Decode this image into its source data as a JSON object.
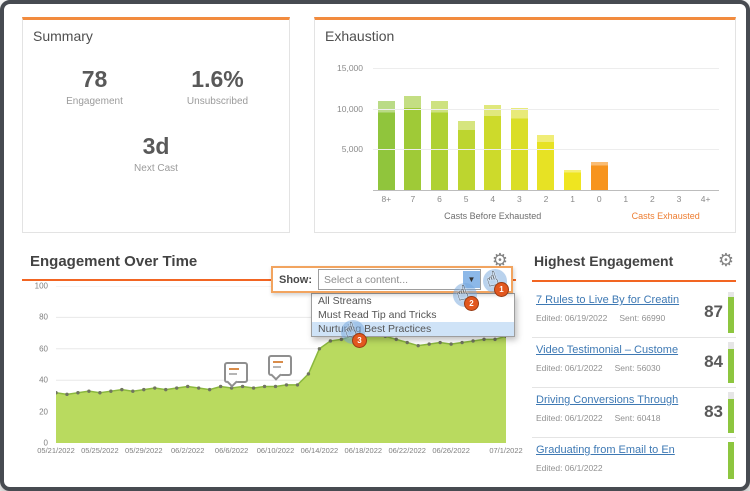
{
  "icons": {
    "gear": "⚙",
    "dropdown_arrow": "▼",
    "cursor_hand": "☝"
  },
  "summary": {
    "title": "Summary",
    "stats": [
      {
        "value": "78",
        "label": "Engagement"
      },
      {
        "value": "1.6%",
        "label": "Unsubscribed"
      },
      {
        "value": "3d",
        "label": "Next Cast"
      }
    ]
  },
  "exhaustion": {
    "title": "Exhaustion"
  },
  "engagement_over_time": {
    "title": "Engagement Over Time",
    "show_label": "Show:",
    "select_placeholder": "Select a content...",
    "dropdown_options": [
      "All Streams",
      "Must Read Tip and Tricks",
      "Nurturing Best Practices"
    ],
    "highlighted_option": "Nurturing Best Practices",
    "cursor_steps": [
      "1",
      "2",
      "3"
    ]
  },
  "highest_engagement": {
    "title": "Highest Engagement",
    "items": [
      {
        "title": "7 Rules to Live By for Creatin",
        "edited": "Edited: 06/19/2022",
        "sent": "Sent: 66990",
        "score": "87"
      },
      {
        "title": "Video Testimonial – Custome",
        "edited": "Edited: 06/1/2022",
        "sent": "Sent: 56030",
        "score": "84"
      },
      {
        "title": "Driving Conversions Through",
        "edited": "Edited: 06/1/2022",
        "sent": "Sent: 60418",
        "score": "83"
      },
      {
        "title": "Graduating from Email to En",
        "edited": "Edited: 06/1/2022",
        "sent": "",
        "score": ""
      }
    ]
  },
  "chart_data": [
    {
      "id": "exhaustion",
      "type": "bar",
      "title": "Exhaustion",
      "categories": [
        "8+",
        "7",
        "6",
        "5",
        "4",
        "3",
        "2",
        "1",
        "0",
        "1",
        "2",
        "3",
        "4+"
      ],
      "values": [
        11000,
        11500,
        11000,
        8500,
        10400,
        10100,
        6800,
        2400,
        3500,
        0,
        0,
        0,
        0
      ],
      "bar_colors": [
        "#90c53c",
        "#9fca37",
        "#afd133",
        "#bdd52f",
        "#cdda2b",
        "#dade27",
        "#e7e224",
        "#efe520",
        "#f7941e",
        "",
        "",
        "",
        ""
      ],
      "ylim": [
        0,
        15000
      ],
      "yticks": [
        {
          "label": "15,000",
          "value": 15000
        },
        {
          "label": "10,000",
          "value": 10000
        },
        {
          "label": "5,000",
          "value": 5000
        }
      ],
      "xlabel_left": "Casts Before Exhausted",
      "xlabel_right": "Casts Exhausted",
      "grid": true,
      "legend": false
    },
    {
      "id": "engagement-over-time",
      "type": "area",
      "title": "Engagement Over Time",
      "ylim": [
        0,
        100
      ],
      "yticks": [
        100,
        80,
        60,
        40,
        20,
        0
      ],
      "x_tick_labels": [
        "05/21/2022",
        "05/25/2022",
        "05/29/2022",
        "06/2/2022",
        "06/6/2022",
        "06/10/2022",
        "06/14/2022",
        "06/18/2022",
        "06/22/2022",
        "06/26/2022",
        "07/1/2022"
      ],
      "x_tick_indices": [
        0,
        4,
        8,
        12,
        16,
        20,
        24,
        28,
        32,
        36,
        41
      ],
      "values": [
        32,
        31,
        32,
        33,
        32,
        33,
        34,
        33,
        34,
        35,
        34,
        35,
        36,
        35,
        34,
        36,
        35,
        36,
        35,
        36,
        36,
        37,
        37,
        44,
        60,
        65,
        66,
        68,
        67,
        69,
        68,
        66,
        64,
        62,
        63,
        64,
        63,
        64,
        65,
        66,
        66,
        68
      ],
      "fill_color": "#b9da5f",
      "line_color": "#8bb83e",
      "dot_color": "#70755f",
      "grid": true,
      "legend": false
    }
  ]
}
